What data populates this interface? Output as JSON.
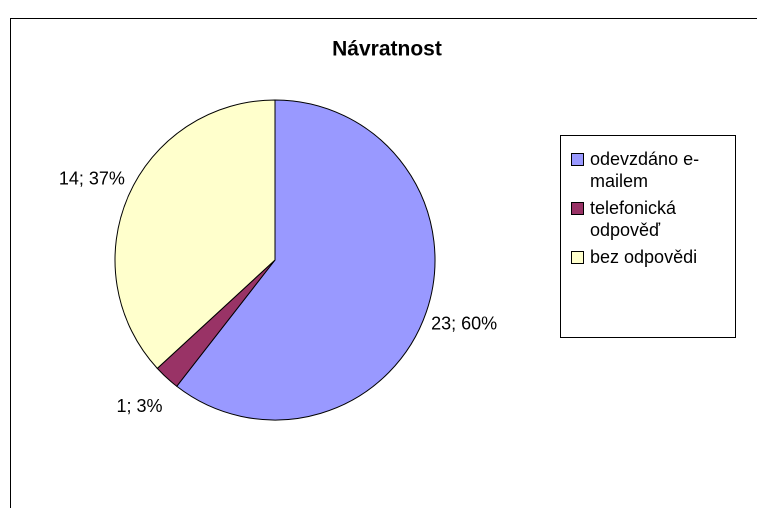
{
  "chart_data": {
    "type": "pie",
    "title": "Návratnost",
    "categories": [
      "odevzdáno e-mailem",
      "telefonická odpověď",
      "bez odpovědi"
    ],
    "values": [
      23,
      1,
      14
    ],
    "value_labels": [
      "23; 60%",
      "1; 3%",
      "14; 37%"
    ],
    "colors": [
      "#9999ff",
      "#993366",
      "#ffffcc"
    ],
    "legend": "right"
  }
}
